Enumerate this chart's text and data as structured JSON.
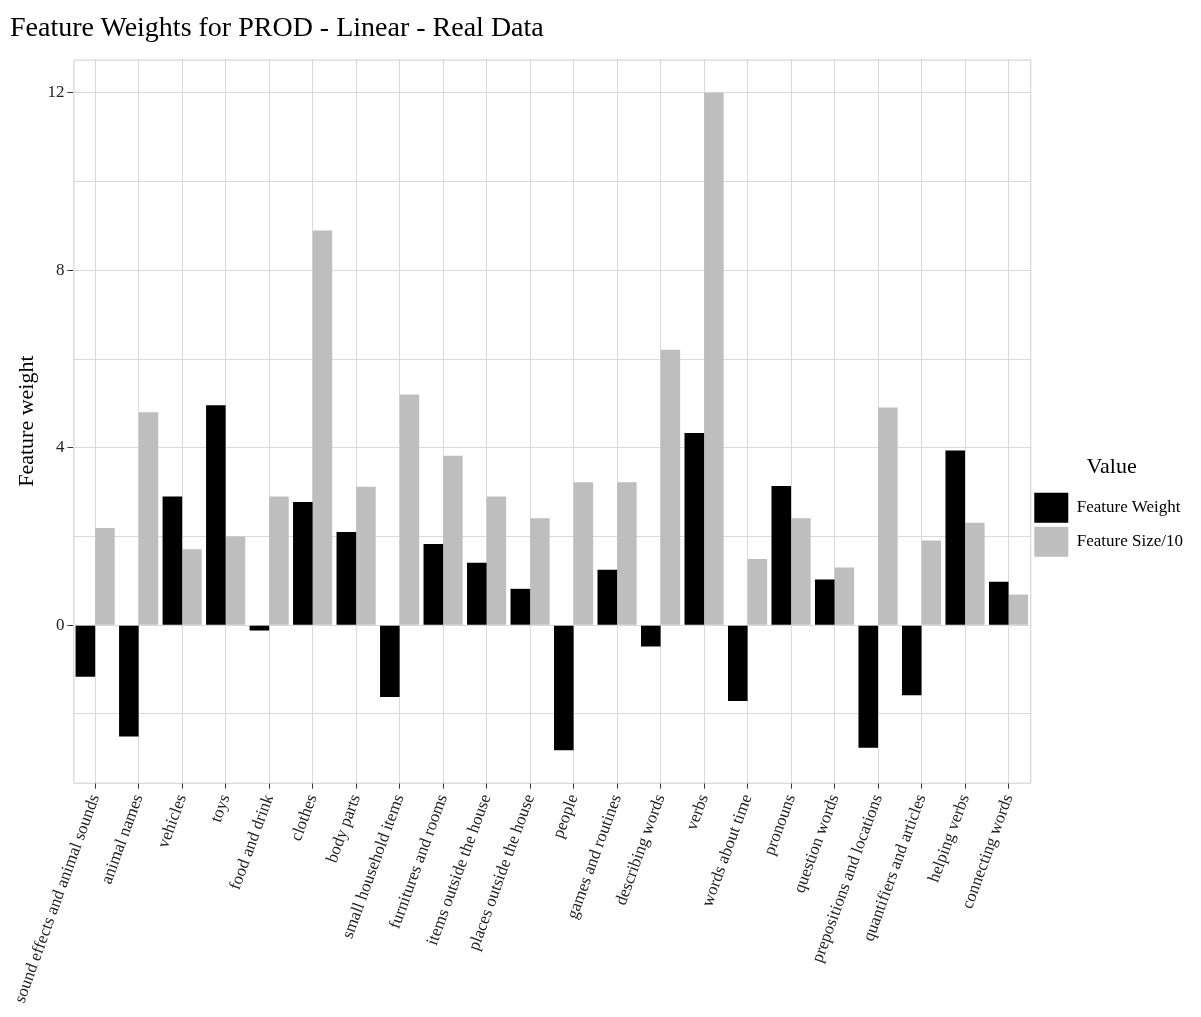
{
  "chart_data": {
    "type": "bar",
    "title": "Feature Weights for PROD - Linear - Real Data",
    "ylabel": "Feature weight",
    "legend_title": "Value",
    "categories": [
      "sound effects and animal sounds",
      "animal names",
      "vehicles",
      "toys",
      "food and drink",
      "clothes",
      "body parts",
      "small household items",
      "furnitures and rooms",
      "items outside the house",
      "places outside the house",
      "people",
      "games and routines",
      "describing words",
      "verbs",
      "words about time",
      "pronouns",
      "question words",
      "prepositions and locations",
      "quantifiers and articles",
      "helping verbs",
      "connecting words"
    ],
    "series": [
      {
        "name": "Feature Weight",
        "color": "#000000",
        "values": [
          -1.16,
          -2.51,
          2.9,
          4.96,
          -0.12,
          2.78,
          2.1,
          -1.62,
          1.83,
          1.41,
          0.82,
          -2.82,
          1.25,
          -0.48,
          4.33,
          -1.71,
          3.14,
          1.03,
          -2.76,
          -1.58,
          3.94,
          0.98
        ]
      },
      {
        "name": "Feature Size/10",
        "color": "#bebebe",
        "values": [
          2.19,
          4.8,
          1.71,
          2.0,
          2.9,
          8.9,
          3.12,
          5.2,
          3.82,
          2.9,
          2.41,
          3.22,
          3.22,
          6.21,
          12.0,
          1.49,
          2.41,
          1.3,
          4.91,
          1.91,
          2.31,
          0.69
        ]
      }
    ],
    "ylim": [
      -3.55,
      12.75
    ],
    "yticks": [
      {
        "value": -2,
        "label": null
      },
      0,
      {
        "value": 2,
        "label": null
      },
      4,
      {
        "value": 6,
        "label": null
      },
      8,
      {
        "value": 10,
        "label": null
      },
      12
    ],
    "grid": true,
    "legend": "right"
  }
}
